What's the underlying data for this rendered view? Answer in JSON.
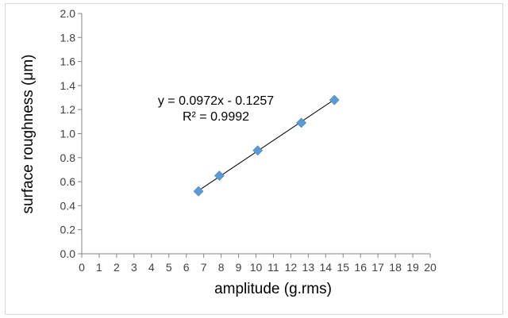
{
  "chart_data": {
    "type": "scatter",
    "title": "",
    "xlabel": "amplitude (g.rms)",
    "ylabel": "surface roughness  (μm)",
    "xlim": [
      0,
      20
    ],
    "ylim": [
      0.0,
      2.0
    ],
    "x_ticks": [
      "0",
      "1",
      "2",
      "3",
      "4",
      "5",
      "6",
      "7",
      "8",
      "9",
      "10",
      "11",
      "12",
      "13",
      "14",
      "15",
      "16",
      "17",
      "18",
      "19",
      "20"
    ],
    "y_ticks": [
      "0.0",
      "0.2",
      "0.4",
      "0.6",
      "0.8",
      "1.0",
      "1.2",
      "1.4",
      "1.6",
      "1.8",
      "2.0"
    ],
    "grid": false,
    "legend": false,
    "series": [
      {
        "marker": "diamond",
        "color": "#5b9bd5",
        "points": [
          {
            "x": 6.7,
            "y": 0.52
          },
          {
            "x": 7.9,
            "y": 0.65
          },
          {
            "x": 10.1,
            "y": 0.86
          },
          {
            "x": 12.6,
            "y": 1.09
          },
          {
            "x": 14.5,
            "y": 1.28
          }
        ]
      }
    ],
    "trendline": {
      "type": "linear",
      "slope": 0.0972,
      "intercept": -0.1257,
      "x_range": [
        6.7,
        14.5
      ],
      "color": "#000000",
      "equation_label": "y = 0.0972x - 0.1257",
      "r2_label": "R² = 0.9992"
    }
  }
}
